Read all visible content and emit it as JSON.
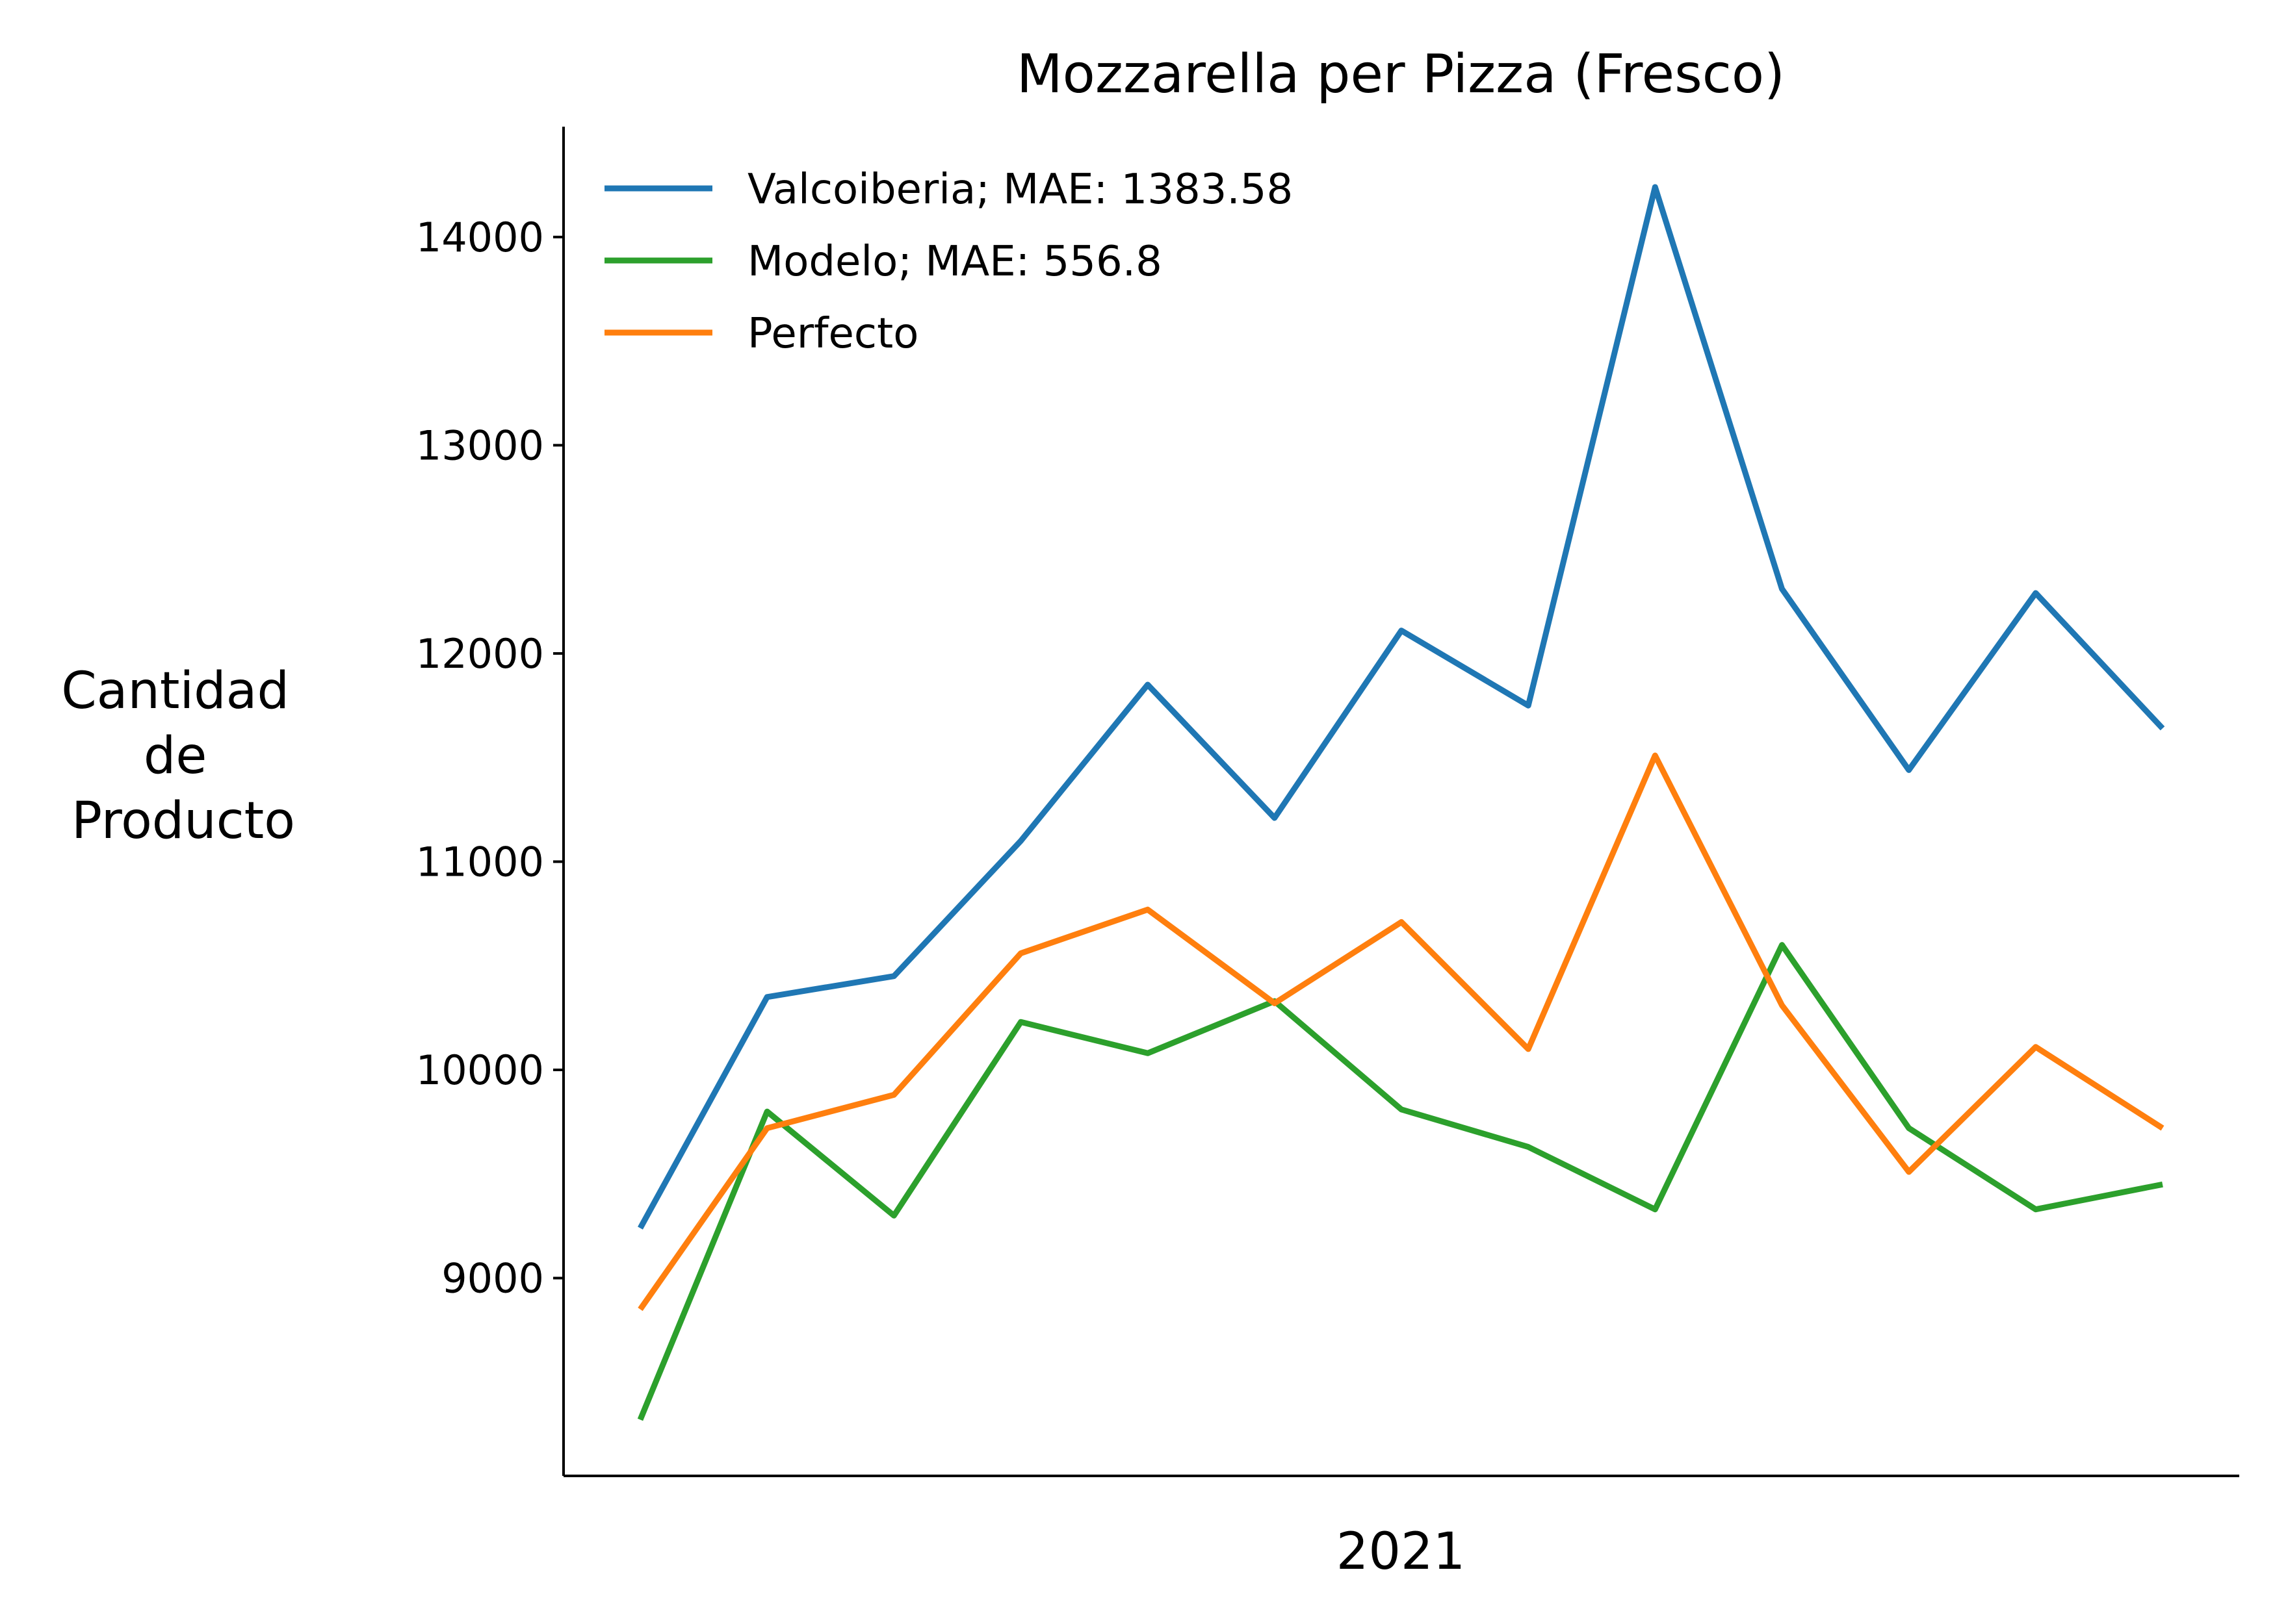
{
  "chart_data": {
    "type": "line",
    "title": "Mozzarella per Pizza (Fresco)",
    "xlabel": "2021",
    "ylabel": [
      "Cantidad",
      "de",
      "Producto"
    ],
    "ylim": [
      8050,
      14530
    ],
    "yticks": [
      9000,
      10000,
      11000,
      12000,
      13000,
      14000
    ],
    "x": [
      1,
      2,
      3,
      4,
      5,
      6,
      7,
      8,
      9,
      10,
      11,
      12,
      13
    ],
    "grid": false,
    "legend_position": "top-left",
    "series": [
      {
        "name": "Valcoiberia; MAE: 1383.58",
        "color": "#1f77b4",
        "values": [
          9240,
          10350,
          10450,
          11100,
          11850,
          11210,
          12110,
          11750,
          14240,
          12310,
          11440,
          12290,
          11640
        ]
      },
      {
        "name": "Modelo; MAE: 556.8",
        "color": "#2ca02c",
        "values": [
          8320,
          9800,
          9300,
          10230,
          10080,
          10330,
          9810,
          9630,
          9330,
          10600,
          9720,
          9330,
          9450
        ]
      },
      {
        "name": "Perfecto",
        "color": "#ff7f0e",
        "values": [
          8850,
          9720,
          9880,
          10560,
          10770,
          10320,
          10710,
          10100,
          11510,
          10310,
          9510,
          10110,
          9720
        ]
      }
    ]
  }
}
